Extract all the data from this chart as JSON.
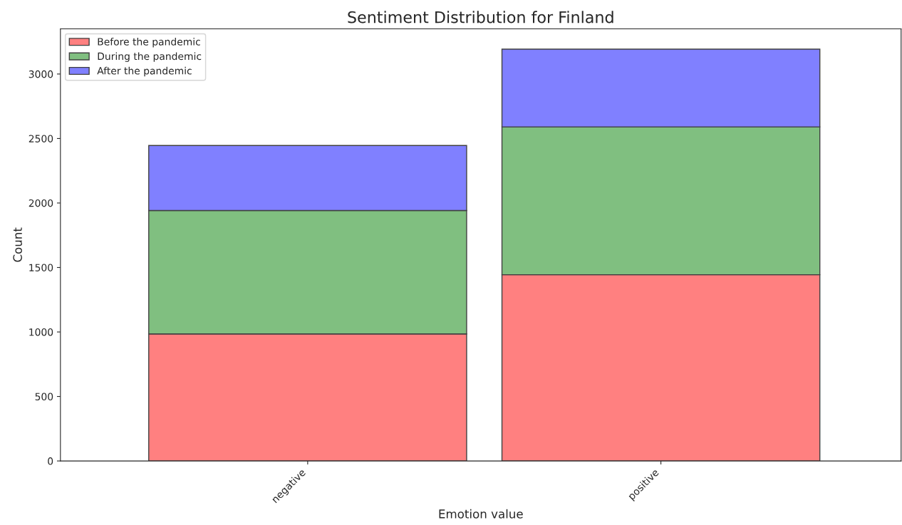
{
  "chart_data": {
    "type": "bar",
    "title": "Sentiment Distribution for Finland",
    "xlabel": "Emotion value",
    "ylabel": "Count",
    "categories": [
      "negative",
      "positive"
    ],
    "stacked": true,
    "series": [
      {
        "name": "Before the pandemic",
        "color": "#ff8080",
        "values": [
          985,
          1444
        ]
      },
      {
        "name": "During the pandemic",
        "color": "#80bf80",
        "values": [
          957,
          1146
        ]
      },
      {
        "name": "After the pandemic",
        "color": "#8080ff",
        "values": [
          504,
          603
        ]
      }
    ],
    "ylim": [
      0,
      3350
    ],
    "yticks": [
      0,
      500,
      1000,
      1500,
      2000,
      2500,
      3000
    ],
    "legend": "top left",
    "grid": false
  }
}
